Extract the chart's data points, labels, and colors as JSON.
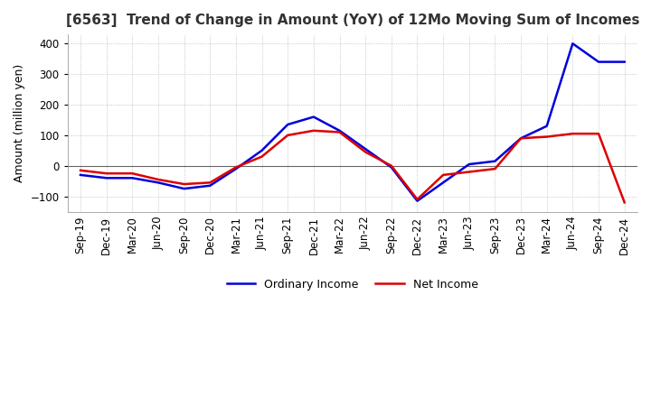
{
  "title": "[6563]  Trend of Change in Amount (YoY) of 12Mo Moving Sum of Incomes",
  "ylabel": "Amount (million yen)",
  "ylim": [
    -150,
    430
  ],
  "yticks": [
    -100,
    0,
    100,
    200,
    300,
    400
  ],
  "background_color": "#ffffff",
  "grid_color": "#aaaaaa",
  "labels": [
    "Sep-19",
    "Dec-19",
    "Mar-20",
    "Jun-20",
    "Sep-20",
    "Dec-20",
    "Mar-21",
    "Jun-21",
    "Sep-21",
    "Dec-21",
    "Mar-22",
    "Jun-22",
    "Sep-22",
    "Dec-22",
    "Mar-23",
    "Jun-23",
    "Sep-23",
    "Dec-23",
    "Mar-24",
    "Jun-24",
    "Sep-24",
    "Dec-24"
  ],
  "ordinary_income": [
    -30,
    -40,
    -40,
    -55,
    -75,
    -65,
    -10,
    50,
    135,
    160,
    115,
    55,
    -5,
    -115,
    -55,
    5,
    15,
    90,
    130,
    400,
    340,
    340
  ],
  "net_income": [
    -15,
    -25,
    -25,
    -45,
    -60,
    -55,
    -5,
    30,
    100,
    115,
    110,
    45,
    0,
    -110,
    -30,
    -20,
    -10,
    90,
    95,
    105,
    105,
    -120
  ],
  "ordinary_color": "#0000dd",
  "net_color": "#dd0000",
  "line_width": 1.8,
  "title_fontsize": 11,
  "axis_fontsize": 9,
  "tick_fontsize": 8.5,
  "legend_fontsize": 9
}
